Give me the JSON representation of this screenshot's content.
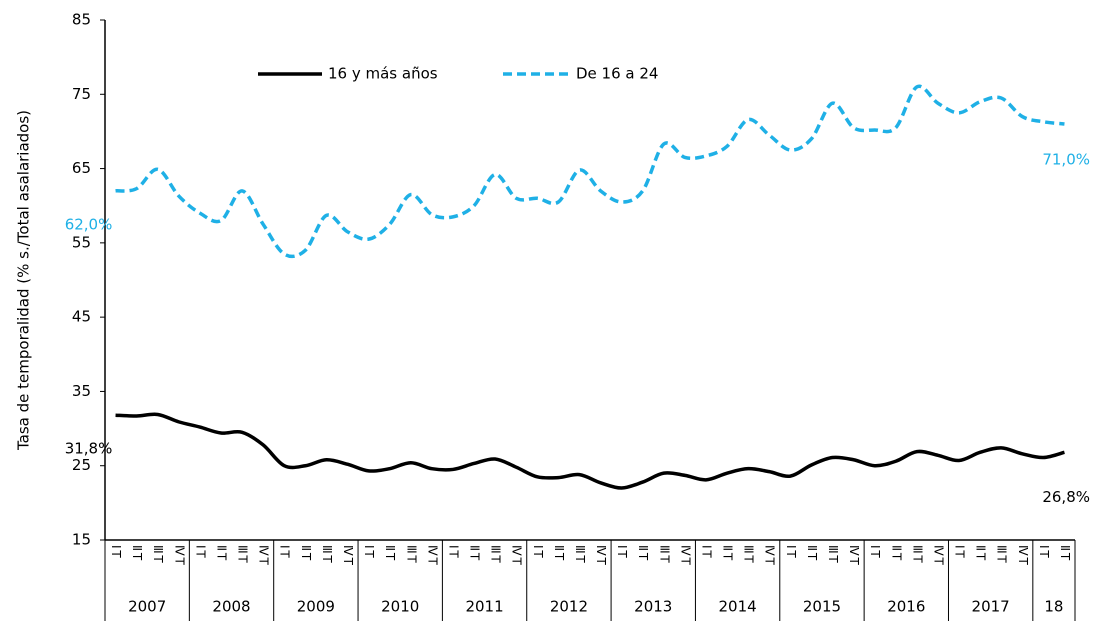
{
  "chart_data": {
    "type": "line",
    "y_label": "Tasa de temporalidad (% s./Total asalariados)",
    "categories": [
      "I T",
      "II T",
      "III T",
      "IV T",
      "I T",
      "II T",
      "III T",
      "IV T",
      "I T",
      "II T",
      "III T",
      "IV T",
      "I T",
      "II T",
      "III T",
      "IV T",
      "I T",
      "II T",
      "III T",
      "IV T",
      "I T",
      "II T",
      "III T",
      "IV T",
      "I T",
      "II T",
      "III T",
      "IV T",
      "I T",
      "II T",
      "III T",
      "IV T",
      "I T",
      "II T",
      "III T",
      "IV T",
      "I T",
      "II T",
      "III T",
      "IV T",
      "I T",
      "II T",
      "III T",
      "IV T",
      "I T",
      "II T"
    ],
    "year_labels": [
      "2007",
      "2008",
      "2009",
      "2010",
      "2011",
      "2012",
      "2013",
      "2014",
      "2015",
      "2016",
      "2017",
      "18"
    ],
    "series": [
      {
        "name": "16 y más años",
        "color": "#000000",
        "dash": false,
        "values": [
          31.8,
          31.7,
          31.9,
          30.9,
          30.2,
          29.4,
          29.5,
          27.8,
          25.0,
          25.0,
          25.8,
          25.2,
          24.3,
          24.6,
          25.4,
          24.6,
          24.5,
          25.3,
          25.9,
          24.8,
          23.5,
          23.4,
          23.8,
          22.7,
          22.0,
          22.8,
          24.0,
          23.7,
          23.1,
          24.0,
          24.6,
          24.2,
          23.6,
          25.1,
          26.1,
          25.8,
          25.0,
          25.6,
          26.9,
          26.4,
          25.7,
          26.8,
          27.4,
          26.6,
          26.1,
          26.8
        ],
        "value_labels": [
          "31,8%",
          null,
          null,
          null,
          null,
          null,
          null,
          null,
          null,
          null,
          null,
          null,
          null,
          null,
          null,
          null,
          null,
          null,
          null,
          null,
          null,
          null,
          null,
          null,
          null,
          null,
          null,
          null,
          null,
          null,
          null,
          null,
          null,
          null,
          null,
          null,
          null,
          null,
          null,
          null,
          null,
          null,
          null,
          null,
          null,
          "26,8%"
        ]
      },
      {
        "name": "De 16 a 24",
        "color": "#1fb0e6",
        "dash": true,
        "values": [
          62.0,
          62.3,
          64.9,
          61.3,
          59.0,
          58.0,
          62.0,
          57.5,
          53.5,
          54.0,
          58.7,
          56.5,
          55.5,
          57.5,
          61.5,
          58.8,
          58.5,
          60.0,
          64.2,
          61.0,
          61.0,
          60.5,
          64.8,
          62.0,
          60.5,
          62.0,
          68.3,
          66.5,
          66.7,
          68.0,
          71.6,
          69.5,
          67.5,
          69.0,
          73.8,
          70.5,
          70.2,
          70.5,
          76.0,
          73.8,
          72.5,
          74.0,
          74.5,
          72.0,
          71.3,
          71.0
        ],
        "value_labels": [
          "62,0%",
          null,
          null,
          null,
          null,
          null,
          null,
          null,
          null,
          null,
          null,
          null,
          null,
          null,
          null,
          null,
          null,
          null,
          null,
          null,
          null,
          null,
          null,
          null,
          null,
          null,
          null,
          null,
          null,
          null,
          null,
          null,
          null,
          null,
          null,
          null,
          null,
          null,
          null,
          null,
          null,
          null,
          null,
          null,
          null,
          "71,0%"
        ]
      }
    ],
    "ylim": [
      15,
      85
    ],
    "yticks": [
      15,
      25,
      35,
      45,
      55,
      65,
      75,
      85
    ],
    "grid": false
  }
}
